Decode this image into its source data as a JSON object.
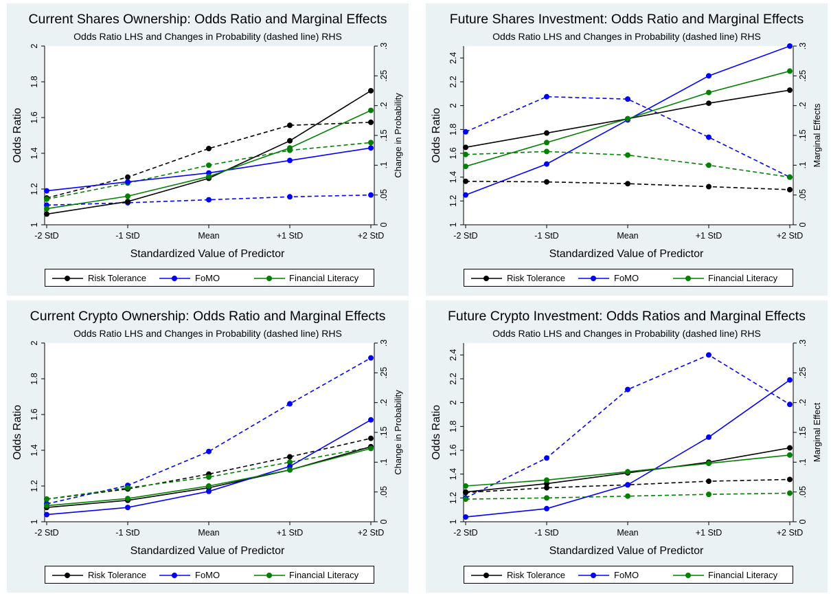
{
  "legend": [
    "Risk Tolerance",
    "FoMO",
    "Financial Literacy"
  ],
  "colors": {
    "risk": "#000000",
    "fomo": "#0000ff",
    "literacy": "#008000",
    "background": "#eaf2f3"
  },
  "chart_data": [
    {
      "type": "line",
      "title": "Current Shares Ownership: Odds Ratio and Marginal Effects",
      "subtitle": "Odds Ratio LHS and Changes in Probability (dashed line) RHS",
      "xlabel": "Standardized Value of Predictor",
      "ylabel": "Odds Ratio",
      "y2label": "Change in Probability",
      "categories": [
        "-2 StD",
        "-1 StD",
        "Mean",
        "+1 StD",
        "+2 StD"
      ],
      "ylim": [
        1,
        2
      ],
      "yticks": [
        "1",
        "1.2",
        "1.4",
        "1.6",
        "1.8",
        "2"
      ],
      "y2lim": [
        0,
        0.3
      ],
      "y2ticks": [
        "0",
        ".05",
        ".1",
        ".15",
        ".2",
        ".25",
        ".3"
      ],
      "series": [
        {
          "name": "Risk Tolerance",
          "axis": "left",
          "values": [
            1.06,
            1.13,
            1.26,
            1.47,
            1.75
          ]
        },
        {
          "name": "FoMO",
          "axis": "left",
          "values": [
            1.19,
            1.24,
            1.29,
            1.36,
            1.43
          ]
        },
        {
          "name": "Financial Literacy",
          "axis": "left",
          "values": [
            1.09,
            1.16,
            1.27,
            1.43,
            1.64
          ]
        },
        {
          "name": "Risk Tolerance",
          "axis": "right",
          "dashed": true,
          "values": [
            0.045,
            0.08,
            0.128,
            0.167,
            0.172
          ]
        },
        {
          "name": "FoMO",
          "axis": "right",
          "dashed": true,
          "values": [
            0.033,
            0.037,
            0.042,
            0.047,
            0.05
          ]
        },
        {
          "name": "Financial Literacy",
          "axis": "right",
          "dashed": true,
          "values": [
            0.043,
            0.07,
            0.1,
            0.125,
            0.138
          ]
        }
      ]
    },
    {
      "type": "line",
      "title": "Future Shares Investment: Odds Ratio and Marginal Effects",
      "subtitle": "Odds Ratio LHS and Changes in Probability (dashed line) RHS",
      "xlabel": "Standardized Value of Predictor",
      "ylabel": "Odds Ratio",
      "y2label": "Marginal Effects",
      "categories": [
        "-2 StD",
        "-1 StD",
        "Mean",
        "+1 StD",
        "+2 StD"
      ],
      "ylim": [
        1,
        2.5
      ],
      "yticks": [
        "1",
        "1.2",
        "1.4",
        "1.6",
        "1.8",
        "2",
        "2.2",
        "2.4"
      ],
      "y2lim": [
        0,
        0.3
      ],
      "y2ticks": [
        "0",
        ".05",
        ".1",
        ".15",
        ".2",
        ".25",
        ".3"
      ],
      "series": [
        {
          "name": "Risk Tolerance",
          "axis": "left",
          "values": [
            1.65,
            1.77,
            1.89,
            2.02,
            2.13
          ]
        },
        {
          "name": "FoMO",
          "axis": "left",
          "values": [
            1.25,
            1.51,
            1.88,
            2.25,
            2.5
          ]
        },
        {
          "name": "Financial Literacy",
          "axis": "left",
          "values": [
            1.49,
            1.69,
            1.89,
            2.11,
            2.29
          ]
        },
        {
          "name": "Risk Tolerance",
          "axis": "right",
          "dashed": true,
          "values": [
            0.073,
            0.072,
            0.069,
            0.064,
            0.059
          ]
        },
        {
          "name": "FoMO",
          "axis": "right",
          "dashed": true,
          "values": [
            0.156,
            0.215,
            0.211,
            0.147,
            0.08
          ]
        },
        {
          "name": "Financial Literacy",
          "axis": "right",
          "dashed": true,
          "values": [
            0.118,
            0.123,
            0.117,
            0.1,
            0.08
          ]
        }
      ]
    },
    {
      "type": "line",
      "title": "Current Crypto Ownership: Odds Ratio and Marginal Effects",
      "subtitle": "Odds Ratio LHS and Changes in Probability (dashed line) RHS",
      "xlabel": "Standardized Value of Predictor",
      "ylabel": "Odds Ratio",
      "y2label": "Change in Probability",
      "categories": [
        "-2 StD",
        "-1 StD",
        "Mean",
        "+1 StD",
        "+2 StD"
      ],
      "ylim": [
        1,
        2
      ],
      "yticks": [
        "1",
        "1.2",
        "1.4",
        "1.6",
        "1.8",
        "2"
      ],
      "y2lim": [
        0,
        0.3
      ],
      "y2ticks": [
        "0",
        ".05",
        ".1",
        ".15",
        ".2",
        ".25",
        ".3"
      ],
      "series": [
        {
          "name": "Risk Tolerance",
          "axis": "left",
          "values": [
            1.08,
            1.12,
            1.19,
            1.29,
            1.42
          ]
        },
        {
          "name": "FoMO",
          "axis": "left",
          "values": [
            1.04,
            1.08,
            1.17,
            1.31,
            1.57
          ]
        },
        {
          "name": "Financial Literacy",
          "axis": "left",
          "values": [
            1.09,
            1.13,
            1.2,
            1.29,
            1.41
          ]
        },
        {
          "name": "Risk Tolerance",
          "axis": "right",
          "dashed": true,
          "values": [
            0.038,
            0.055,
            0.08,
            0.109,
            0.14
          ]
        },
        {
          "name": "FoMO",
          "axis": "right",
          "dashed": true,
          "values": [
            0.03,
            0.061,
            0.118,
            0.198,
            0.275
          ]
        },
        {
          "name": "Financial Literacy",
          "axis": "right",
          "dashed": true,
          "values": [
            0.038,
            0.057,
            0.075,
            0.1,
            0.125
          ]
        }
      ]
    },
    {
      "type": "line",
      "title": "Future Crypto Investment: Odds Ratios and Marginal Effects",
      "subtitle": "Odds Ratio LHS and Changes in Probability (dashed line) RHS",
      "xlabel": "Standardized Value of Predictor",
      "ylabel": "Odds Ratio",
      "y2label": "Marginal Effect",
      "categories": [
        "-2 StD",
        "-1 StD",
        "Mean",
        "+1 StD",
        "+2 StD"
      ],
      "ylim": [
        1,
        2.5
      ],
      "yticks": [
        "1",
        "1.2",
        "1.4",
        "1.6",
        "1.8",
        "2",
        "2.2",
        "2.4"
      ],
      "y2lim": [
        0,
        0.3
      ],
      "y2ticks": [
        "0",
        ".05",
        ".1",
        ".15",
        ".2",
        ".25",
        ".3"
      ],
      "series": [
        {
          "name": "Risk Tolerance",
          "axis": "left",
          "values": [
            1.25,
            1.32,
            1.41,
            1.5,
            1.62
          ]
        },
        {
          "name": "FoMO",
          "axis": "left",
          "values": [
            1.04,
            1.11,
            1.31,
            1.71,
            2.19
          ]
        },
        {
          "name": "Financial Literacy",
          "axis": "left",
          "values": [
            1.3,
            1.35,
            1.42,
            1.49,
            1.56
          ]
        },
        {
          "name": "Risk Tolerance",
          "axis": "right",
          "dashed": true,
          "values": [
            0.049,
            0.057,
            0.062,
            0.068,
            0.071
          ]
        },
        {
          "name": "FoMO",
          "axis": "right",
          "dashed": true,
          "values": [
            0.04,
            0.107,
            0.222,
            0.28,
            0.197
          ]
        },
        {
          "name": "Financial Literacy",
          "axis": "right",
          "dashed": true,
          "values": [
            0.038,
            0.04,
            0.043,
            0.046,
            0.048
          ]
        }
      ]
    }
  ]
}
